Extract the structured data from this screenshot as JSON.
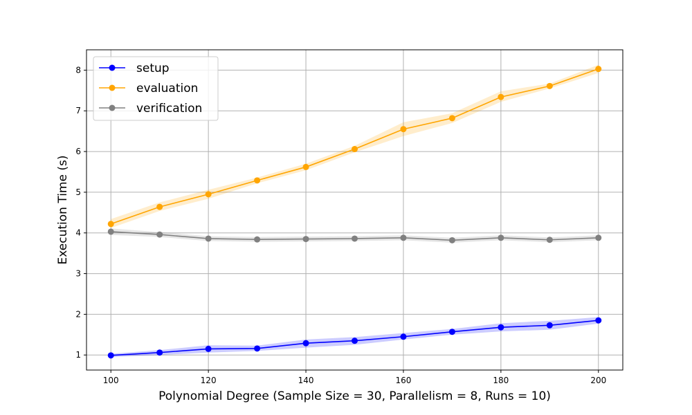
{
  "chart_data": {
    "type": "line",
    "title": "",
    "xlabel": "Polynomial Degree (Sample Size = 30, Parallelism = 8, Runs = 10)",
    "ylabel": "Execution Time (s)",
    "x": [
      100,
      110,
      120,
      130,
      140,
      150,
      160,
      170,
      180,
      190,
      200
    ],
    "x_ticks": [
      "100",
      "120",
      "140",
      "160",
      "180",
      "200"
    ],
    "y_ticks": [
      "1",
      "2",
      "3",
      "4",
      "5",
      "6",
      "7",
      "8"
    ],
    "xlim": [
      95,
      205
    ],
    "ylim": [
      0.63,
      8.5
    ],
    "grid": true,
    "legend_position": "top-left",
    "series": [
      {
        "name": "setup",
        "color": "#0000ff",
        "values": [
          0.99,
          1.06,
          1.15,
          1.16,
          1.29,
          1.35,
          1.45,
          1.57,
          1.68,
          1.73,
          1.85
        ],
        "lower": [
          0.95,
          1.0,
          1.06,
          1.1,
          1.18,
          1.25,
          1.38,
          1.5,
          1.58,
          1.62,
          1.77
        ],
        "upper": [
          1.03,
          1.12,
          1.24,
          1.23,
          1.38,
          1.44,
          1.54,
          1.64,
          1.78,
          1.84,
          1.93
        ]
      },
      {
        "name": "evaluation",
        "color": "#ffa500",
        "values": [
          4.22,
          4.64,
          4.95,
          5.29,
          5.62,
          6.06,
          6.55,
          6.82,
          7.34,
          7.61,
          8.03
        ],
        "lower": [
          4.12,
          4.54,
          4.84,
          5.22,
          5.54,
          5.98,
          6.38,
          6.7,
          7.22,
          7.55,
          7.93
        ],
        "upper": [
          4.34,
          4.75,
          5.06,
          5.36,
          5.7,
          6.14,
          6.72,
          6.94,
          7.48,
          7.67,
          8.13
        ]
      },
      {
        "name": "verification",
        "color": "#808080",
        "values": [
          4.03,
          3.96,
          3.86,
          3.84,
          3.85,
          3.86,
          3.88,
          3.82,
          3.88,
          3.83,
          3.88
        ],
        "lower": [
          3.95,
          3.9,
          3.8,
          3.78,
          3.79,
          3.8,
          3.82,
          3.76,
          3.82,
          3.77,
          3.82
        ],
        "upper": [
          4.11,
          4.02,
          3.92,
          3.9,
          3.91,
          3.92,
          3.94,
          3.88,
          3.94,
          3.89,
          3.94
        ]
      }
    ]
  }
}
